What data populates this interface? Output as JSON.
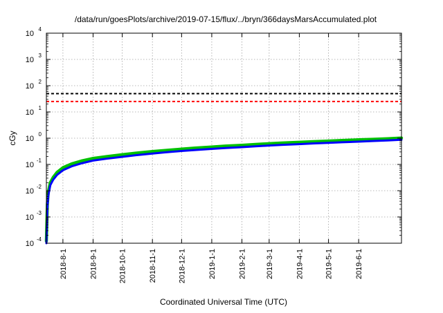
{
  "chart_data": {
    "type": "line",
    "title": "/data/run/goesPlots/archive/2019-07-15/flux/../bryn/366daysMarsAccumulated.plot",
    "xlabel": "Coordinated Universal Time (UTC)",
    "ylabel": "cGy",
    "y_scale": "log",
    "ylim": [
      0.0001,
      10000
    ],
    "y_ticks": [
      {
        "base": "10",
        "exp": "-4"
      },
      {
        "base": "10",
        "exp": "-3"
      },
      {
        "base": "10",
        "exp": "-2"
      },
      {
        "base": "10",
        "exp": "-1"
      },
      {
        "base": "10",
        "exp": "0"
      },
      {
        "base": "10",
        "exp": "1"
      },
      {
        "base": "10",
        "exp": "2"
      },
      {
        "base": "10",
        "exp": "3"
      },
      {
        "base": "10",
        "exp": "4"
      }
    ],
    "xlim": [
      "2018-07-15",
      "2019-07-15"
    ],
    "x_ticks": [
      "2018-8-1",
      "2018-9-1",
      "2018-10-1",
      "2018-11-1",
      "2018-12-1",
      "2019-1-1",
      "2019-2-1",
      "2019-3-1",
      "2019-4-1",
      "2019-5-1",
      "2019-6-1"
    ],
    "grid": true,
    "reference_lines": [
      {
        "y": 50,
        "color": "#000000",
        "style": "dashed"
      },
      {
        "y": 25,
        "color": "#ff0000",
        "style": "dashed"
      }
    ],
    "x": [
      "2018-07-15",
      "2018-07-16",
      "2018-07-17",
      "2018-07-19",
      "2018-07-22",
      "2018-07-26",
      "2018-08-01",
      "2018-08-10",
      "2018-08-20",
      "2018-09-01",
      "2018-09-15",
      "2018-10-01",
      "2018-10-15",
      "2018-11-01",
      "2018-11-15",
      "2018-12-01",
      "2018-12-15",
      "2019-01-01",
      "2019-01-15",
      "2019-02-01",
      "2019-02-15",
      "2019-03-01",
      "2019-03-15",
      "2019-04-01",
      "2019-04-15",
      "2019-05-01",
      "2019-05-15",
      "2019-06-01",
      "2019-06-15",
      "2019-07-01",
      "2019-07-15"
    ],
    "series": [
      {
        "color": "#00c000",
        "values": [
          0.00012,
          0.003,
          0.009,
          0.02,
          0.032,
          0.05,
          0.075,
          0.105,
          0.135,
          0.17,
          0.2,
          0.235,
          0.27,
          0.31,
          0.345,
          0.385,
          0.42,
          0.46,
          0.5,
          0.54,
          0.58,
          0.62,
          0.66,
          0.7,
          0.74,
          0.78,
          0.82,
          0.87,
          0.91,
          0.96,
          1.02
        ]
      },
      {
        "color": "#0000ff",
        "values": [
          0.0001,
          0.0022,
          0.0065,
          0.016,
          0.026,
          0.04,
          0.06,
          0.085,
          0.11,
          0.14,
          0.165,
          0.195,
          0.225,
          0.26,
          0.29,
          0.325,
          0.355,
          0.39,
          0.42,
          0.455,
          0.49,
          0.525,
          0.56,
          0.595,
          0.63,
          0.665,
          0.7,
          0.74,
          0.78,
          0.82,
          0.87
        ]
      }
    ]
  }
}
